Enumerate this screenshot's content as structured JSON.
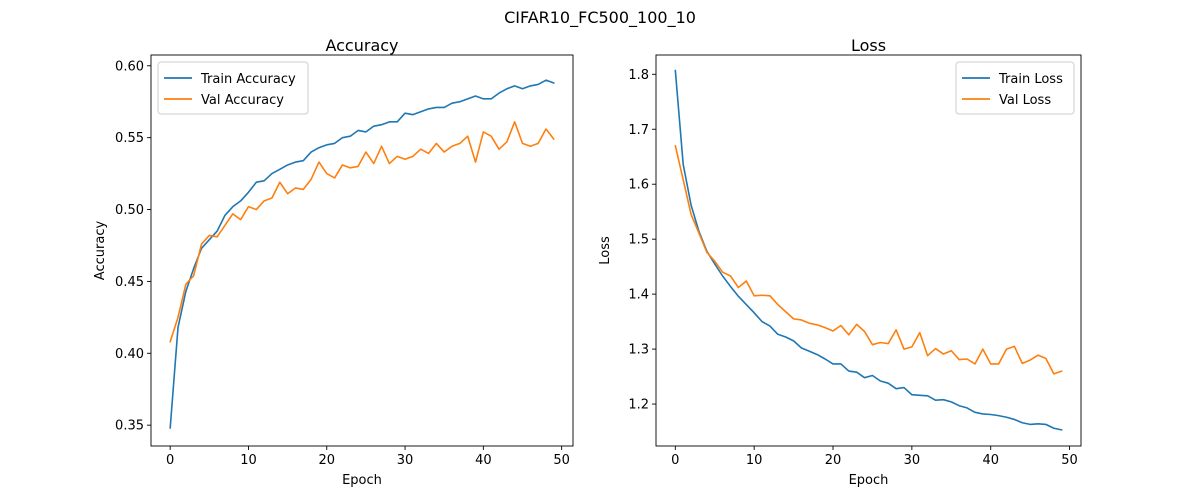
{
  "figure_title": "CIFAR10_FC500_100_10",
  "colors": {
    "train": "#1f77b4",
    "val": "#ff7f0e"
  },
  "chart_data": [
    {
      "type": "line",
      "title": "Accuracy",
      "xlabel": "Epoch",
      "ylabel": "Accuracy",
      "xlim": [
        -2.45,
        51.45
      ],
      "ylim": [
        0.3355,
        0.6075
      ],
      "xticks": [
        0,
        10,
        20,
        30,
        40,
        50
      ],
      "xtick_labels": [
        "0",
        "10",
        "20",
        "30",
        "40",
        "50"
      ],
      "yticks": [
        0.35,
        0.4,
        0.45,
        0.5,
        0.55,
        0.6
      ],
      "ytick_labels": [
        "0.35",
        "0.40",
        "0.45",
        "0.50",
        "0.55",
        "0.60"
      ],
      "grid": false,
      "legend_position": "upper-left",
      "x": [
        0,
        1,
        2,
        3,
        4,
        5,
        6,
        7,
        8,
        9,
        10,
        11,
        12,
        13,
        14,
        15,
        16,
        17,
        18,
        19,
        20,
        21,
        22,
        23,
        24,
        25,
        26,
        27,
        28,
        29,
        30,
        31,
        32,
        33,
        34,
        35,
        36,
        37,
        38,
        39,
        40,
        41,
        42,
        43,
        44,
        45,
        46,
        47,
        48,
        49
      ],
      "series": [
        {
          "name": "Train Accuracy",
          "color_key": "train",
          "values": [
            0.348,
            0.418,
            0.443,
            0.459,
            0.473,
            0.479,
            0.485,
            0.496,
            0.502,
            0.506,
            0.512,
            0.519,
            0.52,
            0.525,
            0.528,
            0.531,
            0.533,
            0.534,
            0.54,
            0.543,
            0.545,
            0.546,
            0.55,
            0.551,
            0.555,
            0.554,
            0.558,
            0.559,
            0.561,
            0.561,
            0.567,
            0.566,
            0.568,
            0.57,
            0.571,
            0.571,
            0.574,
            0.575,
            0.577,
            0.579,
            0.577,
            0.577,
            0.581,
            0.584,
            0.586,
            0.584,
            0.586,
            0.587,
            0.59,
            0.588
          ]
        },
        {
          "name": "Val Accuracy",
          "color_key": "val",
          "values": [
            0.408,
            0.425,
            0.448,
            0.454,
            0.476,
            0.482,
            0.481,
            0.489,
            0.497,
            0.493,
            0.502,
            0.5,
            0.506,
            0.508,
            0.519,
            0.511,
            0.515,
            0.514,
            0.521,
            0.533,
            0.525,
            0.522,
            0.531,
            0.529,
            0.53,
            0.54,
            0.532,
            0.544,
            0.532,
            0.537,
            0.535,
            0.537,
            0.542,
            0.539,
            0.546,
            0.54,
            0.544,
            0.546,
            0.551,
            0.533,
            0.554,
            0.551,
            0.542,
            0.547,
            0.561,
            0.546,
            0.544,
            0.546,
            0.556,
            0.549
          ]
        }
      ]
    },
    {
      "type": "line",
      "title": "Loss",
      "xlabel": "Epoch",
      "ylabel": "Loss",
      "xlim": [
        -2.45,
        51.45
      ],
      "ylim": [
        1.1237,
        1.8351
      ],
      "xticks": [
        0,
        10,
        20,
        30,
        40,
        50
      ],
      "xtick_labels": [
        "0",
        "10",
        "20",
        "30",
        "40",
        "50"
      ],
      "yticks": [
        1.2,
        1.3,
        1.4,
        1.5,
        1.6,
        1.7,
        1.8
      ],
      "ytick_labels": [
        "1.2",
        "1.3",
        "1.4",
        "1.5",
        "1.6",
        "1.7",
        "1.8"
      ],
      "grid": false,
      "legend_position": "upper-right",
      "x": [
        0,
        1,
        2,
        3,
        4,
        5,
        6,
        7,
        8,
        9,
        10,
        11,
        12,
        13,
        14,
        15,
        16,
        17,
        18,
        19,
        20,
        21,
        22,
        23,
        24,
        25,
        26,
        27,
        28,
        29,
        30,
        31,
        32,
        33,
        34,
        35,
        36,
        37,
        38,
        39,
        40,
        41,
        42,
        43,
        44,
        45,
        46,
        47,
        48,
        49
      ],
      "series": [
        {
          "name": "Train Loss",
          "color_key": "train",
          "values": [
            1.807,
            1.636,
            1.562,
            1.514,
            1.478,
            1.455,
            1.433,
            1.414,
            1.396,
            1.381,
            1.366,
            1.35,
            1.342,
            1.327,
            1.322,
            1.315,
            1.302,
            1.296,
            1.29,
            1.282,
            1.273,
            1.273,
            1.26,
            1.258,
            1.248,
            1.252,
            1.242,
            1.238,
            1.228,
            1.23,
            1.217,
            1.216,
            1.215,
            1.207,
            1.208,
            1.204,
            1.197,
            1.193,
            1.185,
            1.182,
            1.181,
            1.179,
            1.176,
            1.172,
            1.166,
            1.163,
            1.164,
            1.163,
            1.156,
            1.153
          ]
        },
        {
          "name": "Val Loss",
          "color_key": "val",
          "values": [
            1.67,
            1.608,
            1.545,
            1.511,
            1.476,
            1.46,
            1.44,
            1.433,
            1.412,
            1.424,
            1.397,
            1.398,
            1.397,
            1.381,
            1.368,
            1.355,
            1.353,
            1.347,
            1.344,
            1.339,
            1.333,
            1.343,
            1.326,
            1.345,
            1.332,
            1.308,
            1.312,
            1.31,
            1.335,
            1.3,
            1.304,
            1.33,
            1.288,
            1.301,
            1.291,
            1.297,
            1.281,
            1.282,
            1.273,
            1.3,
            1.273,
            1.273,
            1.3,
            1.305,
            1.274,
            1.28,
            1.289,
            1.283,
            1.255,
            1.26
          ]
        }
      ]
    }
  ]
}
